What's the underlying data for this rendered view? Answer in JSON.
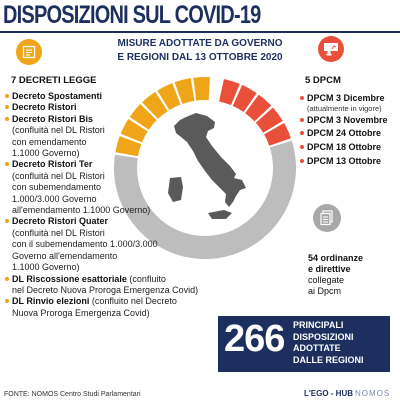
{
  "title": "DISPOSIZIONI SUL COVID-19",
  "subtitle": {
    "line1": "MISURE ADOTTATE DA GOVERNO",
    "line2": "E REGIONI DAL 13 OTTOBRE 2020"
  },
  "left_section": {
    "heading": "7 DECRETI LEGGE",
    "items": [
      {
        "name": "Decreto Spostamenti",
        "note": "",
        "desc": []
      },
      {
        "name": "Decreto Ristori",
        "note": "",
        "desc": []
      },
      {
        "name": "Decreto Ristori Bis",
        "note": "",
        "desc": [
          "(confluità nel DL Ristori",
          "con emendamento",
          "1.1000 Governo)"
        ]
      },
      {
        "name": "Decreto Ristori Ter",
        "note": "",
        "desc": [
          "(confluità nel DL Ristori",
          "con subemendamento",
          "1.000/3.000 Governo",
          "all'emendamento 1.1000 Governo)"
        ]
      },
      {
        "name": "Decreto Ristori Quater",
        "note": "",
        "desc": [
          "(confluità nel DL Ristori",
          "con il subemendamento 1.000/3.000",
          "Governo all'emendamento",
          "1.1000 Governo)"
        ]
      },
      {
        "name": "DL Riscossione esattoriale",
        "note": " (confluito",
        "desc": [
          "nel Decreto Nuova Proroga Emergenza Covid)"
        ]
      },
      {
        "name": "DL Rinvio elezioni",
        "note": " (confluito nel Decreto",
        "desc": [
          "Nuova Proroga Emergenza Covid)"
        ]
      }
    ]
  },
  "right_section": {
    "heading": "5 DPCM",
    "items": [
      {
        "label": "DPCM 3 Dicembre",
        "note": "(attualmente in vigore)"
      },
      {
        "label": "DPCM 3 Novembre",
        "note": ""
      },
      {
        "label": "DPCM 24 Ottobre",
        "note": ""
      },
      {
        "label": "DPCM 18 Ottobre",
        "note": ""
      },
      {
        "label": "DPCM 13 Ottobre",
        "note": ""
      }
    ]
  },
  "ordinanze": {
    "bold_line1": "54 ordinanze",
    "bold_line2": "e direttive",
    "line3": "collegate",
    "line4": "ai Dpcm"
  },
  "regional": {
    "number": "266",
    "line1": "PRINCIPALI",
    "line2": "DISPOSIZIONI",
    "line3": "ADOTTATE",
    "line4": "DALLE REGIONI"
  },
  "footer": {
    "source": "FONTE: NOMOS Centro Studi Parlamentari",
    "brand": "L'EGO - HUB",
    "brand2": "NOMOS"
  },
  "colors": {
    "navy": "#1d2f5e",
    "orange": "#f0a417",
    "red": "#e8503a",
    "gray": "#bdbdbd"
  }
}
